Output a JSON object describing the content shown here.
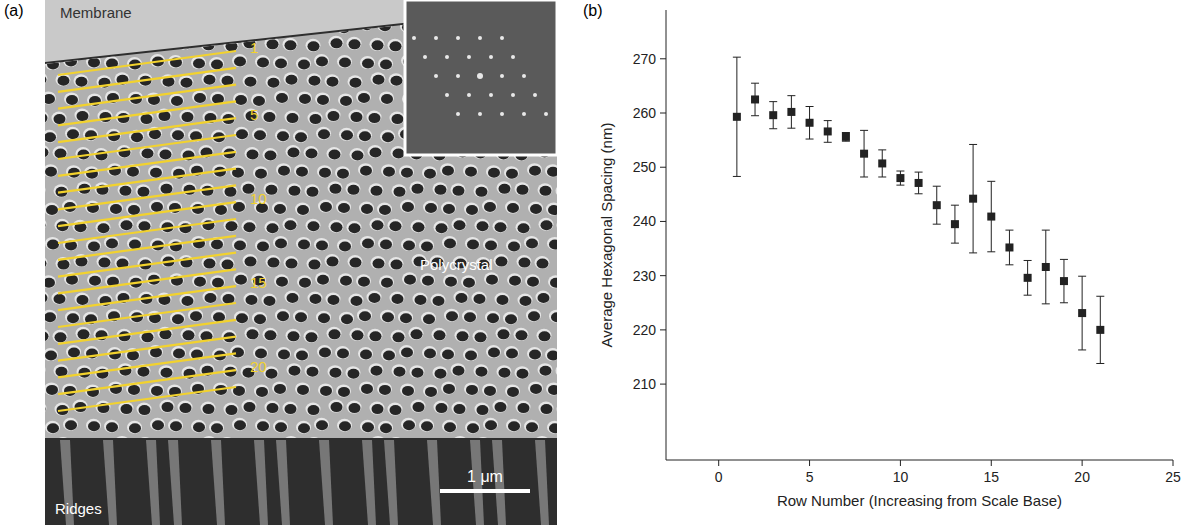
{
  "panel_a": {
    "letter": "(a)",
    "labels": {
      "membrane": "Membrane",
      "polycrystal": "Polycrystal",
      "ridges": "Ridges"
    },
    "scale_bar": "1 μm",
    "row_labels": [
      1,
      5,
      10,
      15,
      20
    ]
  },
  "chart_data": {
    "type": "scatter",
    "letter": "(b)",
    "x_label": "Row Number (Increasing from Scale Base)",
    "y_label": "Average Hexagonal Spacing (nm)",
    "x": [
      1,
      2,
      3,
      4,
      5,
      6,
      7,
      8,
      9,
      10,
      11,
      12,
      13,
      14,
      15,
      16,
      17,
      18,
      19,
      20,
      21
    ],
    "values": [
      259.3,
      262.5,
      259.6,
      260.2,
      258.2,
      256.6,
      255.6,
      252.5,
      250.7,
      248.0,
      247.1,
      243.0,
      239.5,
      244.2,
      240.9,
      235.2,
      229.6,
      231.6,
      229.0,
      223.1,
      220.0
    ],
    "errors": [
      11.0,
      3.0,
      2.5,
      3.0,
      3.0,
      2.0,
      0.8,
      4.3,
      2.5,
      1.3,
      2.0,
      3.5,
      3.5,
      10.0,
      6.5,
      3.2,
      3.2,
      6.8,
      4.0,
      6.8,
      6.2
    ],
    "color": "#222222",
    "marker": "square",
    "xlim": [
      -2.9,
      25
    ],
    "xticks": [
      0,
      5,
      10,
      15,
      20,
      25
    ],
    "ylim": [
      196,
      279
    ],
    "yticks": [
      210,
      220,
      230,
      240,
      250,
      260,
      270
    ],
    "grid": false
  }
}
